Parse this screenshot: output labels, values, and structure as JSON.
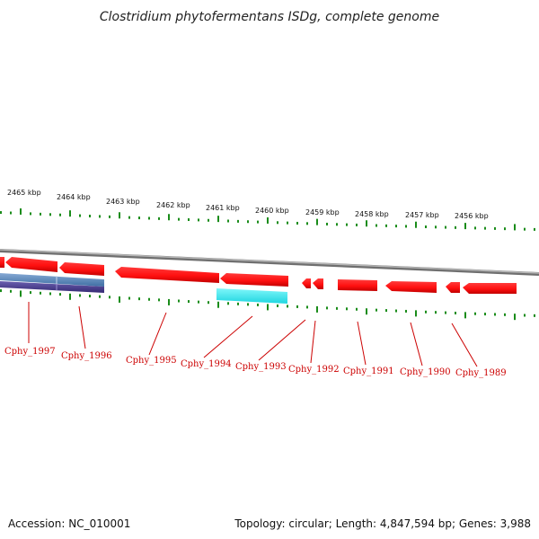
{
  "title": "Clostridium phytofermentans ISDg, complete genome",
  "footer": {
    "accession": "Accession: NC_010001",
    "details": "Topology: circular; Length: 4,847,594 bp; Genes: 3,988"
  },
  "scale_labels": [
    "2465 kbp",
    "2464 kbp",
    "2463 kbp",
    "2462 kbp",
    "2461 kbp",
    "2460 kbp",
    "2459 kbp",
    "2458 kbp",
    "2457 kbp",
    "2456 kbp"
  ],
  "gene_labels": [
    "Cphy_1997",
    "Cphy_1996",
    "Cphy_1995",
    "Cphy_1994",
    "Cphy_1993",
    "Cphy_1992",
    "Cphy_1991",
    "Cphy_1990",
    "Cphy_1989"
  ],
  "colors": {
    "gene_red": "#ff1a1a",
    "tick_green": "#1a8c1a",
    "backbone_gray": "#8c8c8c",
    "feature_cyan": "#33e6ee",
    "feature_blue": "#5b86b8",
    "feature_purple": "#4b3f8f"
  }
}
